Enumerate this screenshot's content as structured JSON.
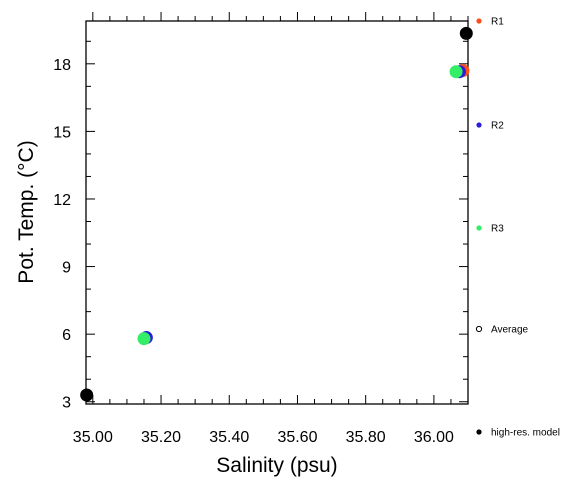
{
  "chart_data": {
    "type": "scatter",
    "title": "",
    "xlabel": "Salinity (psu)",
    "ylabel": "Pot. Temp. (°C)",
    "xlim": [
      34.98,
      36.1
    ],
    "ylim": [
      2.9,
      19.9
    ],
    "x_ticks": [
      35.0,
      35.2,
      35.4,
      35.6,
      35.8,
      36.0
    ],
    "x_tick_labels": [
      "35.00",
      "35.20",
      "35.40",
      "35.60",
      "35.80",
      "36.00"
    ],
    "y_ticks": [
      3,
      6,
      9,
      12,
      15,
      18
    ],
    "y_tick_labels": [
      "3",
      "6",
      "9",
      "12",
      "15",
      "18"
    ],
    "grid": false,
    "legend_position": "right",
    "series": [
      {
        "name": "R1",
        "color": "#ff4d1a",
        "marker": "filled-circle",
        "points": [
          [
            36.085,
            17.7
          ]
        ]
      },
      {
        "name": "R2",
        "color": "#2b1fd6",
        "marker": "filled-circle",
        "points": [
          [
            35.157,
            5.85
          ],
          [
            36.075,
            17.65
          ]
        ]
      },
      {
        "name": "R3",
        "color": "#33ee66",
        "marker": "filled-circle",
        "points": [
          [
            35.15,
            5.8
          ],
          [
            36.065,
            17.65
          ]
        ]
      },
      {
        "name": "Average",
        "color": "#000000",
        "marker": "open-circle",
        "points": []
      },
      {
        "name": "high-res. model",
        "color": "#000000",
        "marker": "filled-circle",
        "points": [
          [
            34.982,
            3.3
          ],
          [
            36.095,
            19.35
          ]
        ]
      }
    ]
  }
}
